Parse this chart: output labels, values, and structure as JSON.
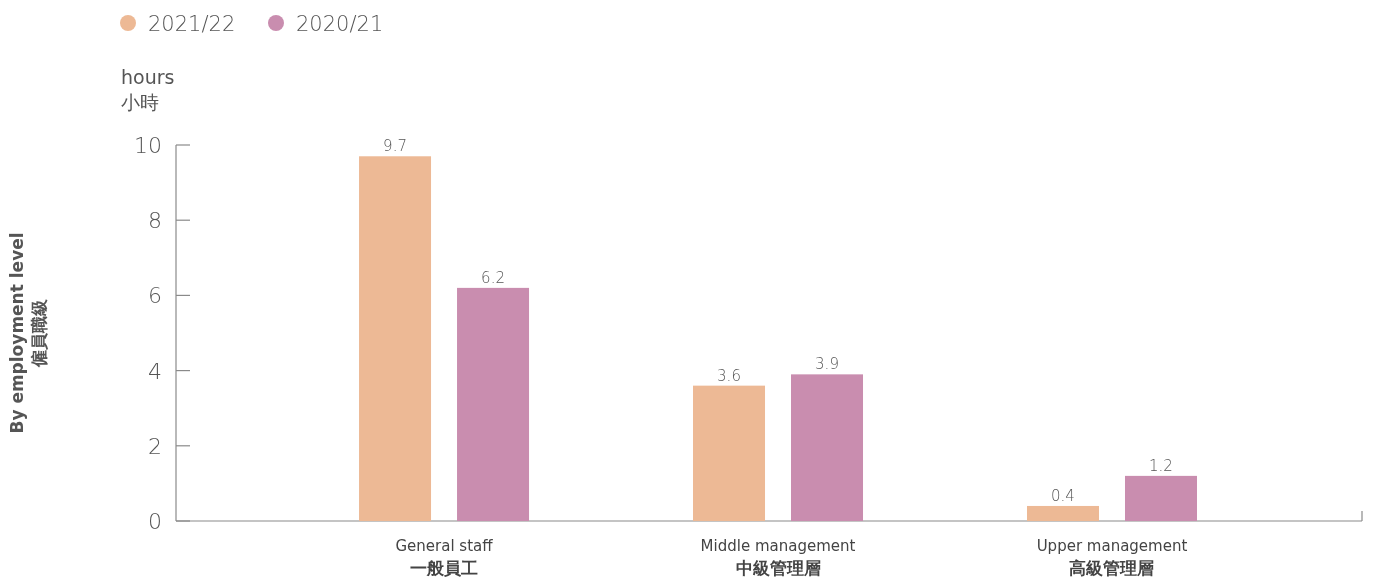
{
  "chart_data": {
    "type": "bar",
    "title": "By employment level\n僱員職級",
    "ylabel": "hours\n小時",
    "categories": [
      "General staff\n一般員工",
      "Middle management\n中級管理層",
      "Upper management\n高級管理層"
    ],
    "series": [
      {
        "name": "2021/22",
        "color": "#edb995",
        "values": [
          9.7,
          3.6,
          0.4
        ]
      },
      {
        "name": "2020/21",
        "color": "#c98daf",
        "values": [
          6.2,
          3.9,
          1.2
        ]
      }
    ],
    "ylim": [
      0,
      10
    ],
    "yticks": [
      0,
      2,
      4,
      6,
      8,
      10
    ],
    "data_labels": true,
    "legend": "top left",
    "grid": false
  }
}
